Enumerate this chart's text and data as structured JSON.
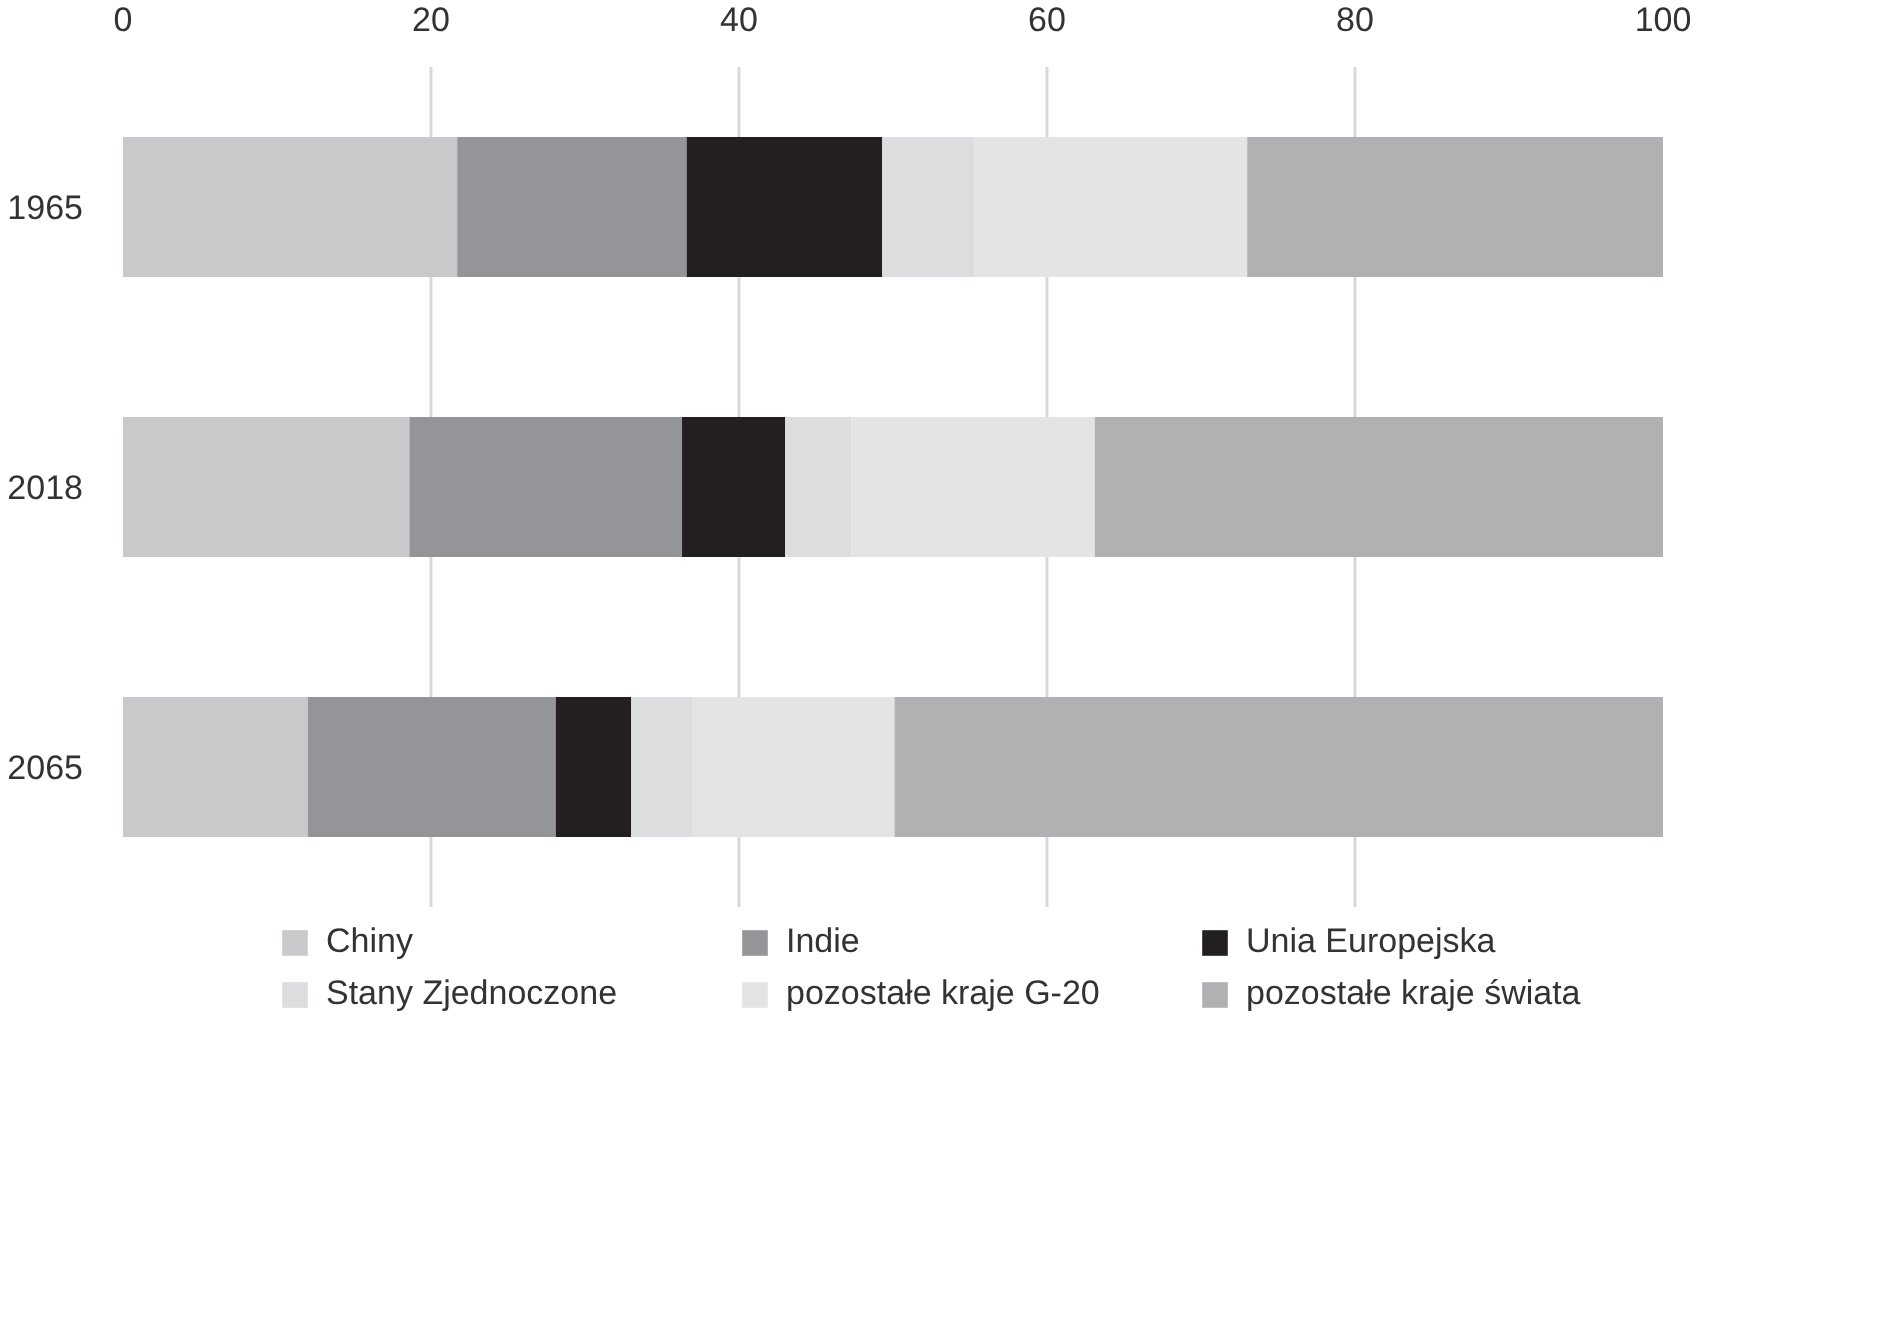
{
  "chart_data": {
    "type": "bar",
    "orientation": "horizontal",
    "stacked": true,
    "categories": [
      "1965",
      "2018",
      "2065"
    ],
    "xlim": [
      0,
      100
    ],
    "xticks": [
      0,
      20,
      40,
      60,
      80,
      100
    ],
    "grid": "x",
    "legend": "bottom",
    "series": [
      {
        "name": "Chiny",
        "color": "#c8c9cb",
        "values": [
          21.7,
          18.6,
          12.0
        ]
      },
      {
        "name": "Indie",
        "color": "#949598",
        "values": [
          14.9,
          17.7,
          16.1
        ]
      },
      {
        "name": "Unia Europejska",
        "color": "#231f20",
        "values": [
          12.7,
          6.7,
          4.9
        ]
      },
      {
        "name": "Stany Zjednoczone",
        "color": "#dcddde",
        "values": [
          6.0,
          4.3,
          4.0
        ]
      },
      {
        "name": "pozostałe kraje G-20",
        "color": "#e4e4e5",
        "values": [
          17.7,
          15.8,
          13.1
        ]
      },
      {
        "name": "pozostałe kraje świata",
        "color": "#b0b1b3",
        "values": [
          27.0,
          36.9,
          49.9
        ]
      }
    ]
  }
}
